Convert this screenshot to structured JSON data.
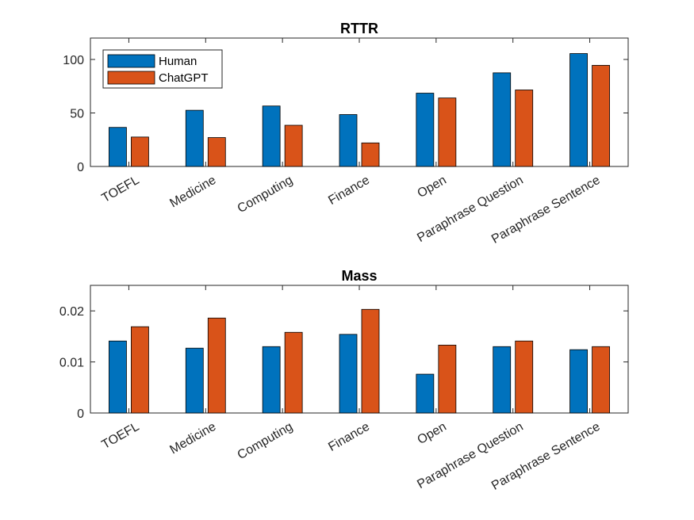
{
  "chart_data": [
    {
      "type": "bar",
      "title": "RTTR",
      "categories": [
        "TOEFL",
        "Medicine",
        "Computing",
        "Finance",
        "Open",
        "Paraphrase Question",
        "Paraphrase Sentence"
      ],
      "series": [
        {
          "name": "Human",
          "color": "#0072BD",
          "values": [
            36.5,
            52.5,
            56.5,
            48.5,
            68.5,
            87.5,
            105.5
          ]
        },
        {
          "name": "ChatGPT",
          "color": "#D95319",
          "values": [
            27.5,
            27,
            38.5,
            22,
            64,
            71.5,
            94.5
          ]
        }
      ],
      "ylim": [
        0,
        120
      ],
      "yticks": [
        0,
        50,
        100
      ],
      "ytick_labels": [
        "0",
        "50",
        "100"
      ],
      "xlabel": "",
      "ylabel": "",
      "legend": {
        "position": "top-left",
        "entries": [
          "Human",
          "ChatGPT"
        ]
      }
    },
    {
      "type": "bar",
      "title": "Mass",
      "categories": [
        "TOEFL",
        "Medicine",
        "Computing",
        "Finance",
        "Open",
        "Paraphrase Question",
        "Paraphrase Sentence"
      ],
      "series": [
        {
          "name": "Human",
          "color": "#0072BD",
          "values": [
            0.0141,
            0.0127,
            0.013,
            0.0154,
            0.0076,
            0.013,
            0.0124
          ]
        },
        {
          "name": "ChatGPT",
          "color": "#D95319",
          "values": [
            0.0169,
            0.0186,
            0.0158,
            0.0203,
            0.0133,
            0.0141,
            0.013
          ]
        }
      ],
      "ylim": [
        0,
        0.025
      ],
      "yticks": [
        0,
        0.01,
        0.02
      ],
      "ytick_labels": [
        "0",
        "0.01",
        "0.02"
      ],
      "xlabel": "",
      "ylabel": ""
    }
  ]
}
